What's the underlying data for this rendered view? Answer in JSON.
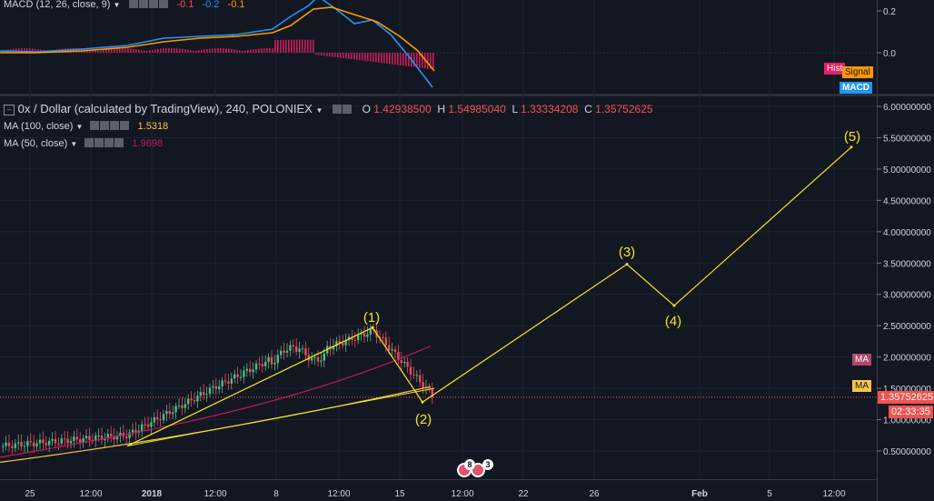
{
  "macd_header": {
    "label": "MACD (12, 26, close, 9)",
    "values": [
      "-0.1",
      "-0.2",
      "-0.1"
    ],
    "value_colors": [
      "#ef5350",
      "#2196f3",
      "#ff9800"
    ]
  },
  "macd_axis": [
    "0.2",
    "0.0"
  ],
  "macd_tags": {
    "hist": "Hist",
    "signal": "Signal",
    "macd": "MACD"
  },
  "main_header": {
    "title": "0x / Dollar (calculated by TradingView), 240, POLONIEX",
    "ohlc": [
      {
        "k": "O",
        "v": "1.42938500"
      },
      {
        "k": "H",
        "v": "1.54985040"
      },
      {
        "k": "L",
        "v": "1.33334208"
      },
      {
        "k": "C",
        "v": "1.35752625"
      }
    ]
  },
  "ma100": {
    "label": "MA (100, close)",
    "value": "1.5318",
    "color": "#f7c548"
  },
  "ma50": {
    "label": "MA (50, close)",
    "value": "1.9698",
    "color": "#c2185b"
  },
  "price_axis": [
    "6.00000000",
    "5.50000000",
    "5.00000000",
    "4.50000000",
    "4.00000000",
    "3.50000000",
    "3.00000000",
    "2.50000000",
    "2.00000000",
    "1.50000000",
    "1.00000000",
    "0.50000000"
  ],
  "current_price": "1.35752625",
  "countdown": "02:33:35",
  "ma_tag": "MA",
  "time_axis": [
    "25",
    "12:00",
    "2018",
    "12:00",
    "8",
    "12:00",
    "15",
    "12:00",
    "22",
    "26",
    "Feb",
    "5",
    "12:00"
  ],
  "wave_labels": [
    "(1)",
    "(2)",
    "(3)",
    "(4)",
    "(5)"
  ],
  "event_badges": [
    "8",
    "3"
  ],
  "chart_data": {
    "type": "candlestick",
    "symbol": "0x / Dollar",
    "exchange": "POLONIEX",
    "interval": "240",
    "ylim": [
      0.2,
      6.1
    ],
    "last_close": 1.35752625,
    "ohlc_last": {
      "open": 1.429385,
      "high": 1.5498504,
      "low": 1.33334208,
      "close": 1.35752625
    },
    "ma100_last": 1.5318,
    "ma50_last": 1.9698,
    "elliott_wave_projection": [
      {
        "label": "start",
        "price": 0.58
      },
      {
        "label": "(1)",
        "price": 2.47
      },
      {
        "label": "(2)",
        "price": 1.28
      },
      {
        "label": "(3)",
        "price": 3.48
      },
      {
        "label": "(4)",
        "price": 2.82
      },
      {
        "label": "(5)",
        "price": 5.35
      }
    ],
    "trendline_lower": [
      0.58,
      1.5
    ],
    "trendline_upper": [
      0.58,
      2.47
    ]
  }
}
